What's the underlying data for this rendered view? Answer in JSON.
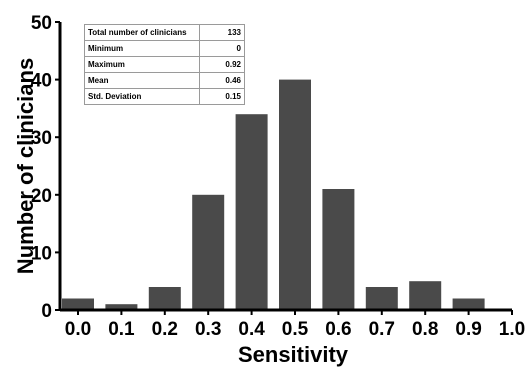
{
  "chart_data": {
    "type": "bar",
    "x_axis_label": "Sensitivity",
    "y_axis_label": "Number of clinicians",
    "bar_color": "#4a4a4a",
    "ylim": [
      0,
      50
    ],
    "xlim": [
      0.0,
      1.0
    ],
    "y_ticks": [
      "0",
      "10",
      "20",
      "30",
      "40",
      "50"
    ],
    "x_ticks": [
      "0.0",
      "0.1",
      "0.2",
      "0.3",
      "0.4",
      "0.5",
      "0.6",
      "0.7",
      "0.8",
      "0.9",
      "1.0"
    ],
    "bars": [
      {
        "x": 0.0,
        "value": 2
      },
      {
        "x": 0.1,
        "value": 1
      },
      {
        "x": 0.2,
        "value": 4
      },
      {
        "x": 0.3,
        "value": 20
      },
      {
        "x": 0.4,
        "value": 34
      },
      {
        "x": 0.5,
        "value": 40
      },
      {
        "x": 0.6,
        "value": 21
      },
      {
        "x": 0.7,
        "value": 4
      },
      {
        "x": 0.8,
        "value": 5
      },
      {
        "x": 0.9,
        "value": 2
      }
    ]
  },
  "stats_table": {
    "rows": [
      {
        "label": "Total number of clinicians",
        "value": "133"
      },
      {
        "label": "Minimum",
        "value": "0"
      },
      {
        "label": "Maximum",
        "value": "0.92"
      },
      {
        "label": "Mean",
        "value": "0.46"
      },
      {
        "label": "Std. Deviation",
        "value": "0.15"
      }
    ]
  }
}
